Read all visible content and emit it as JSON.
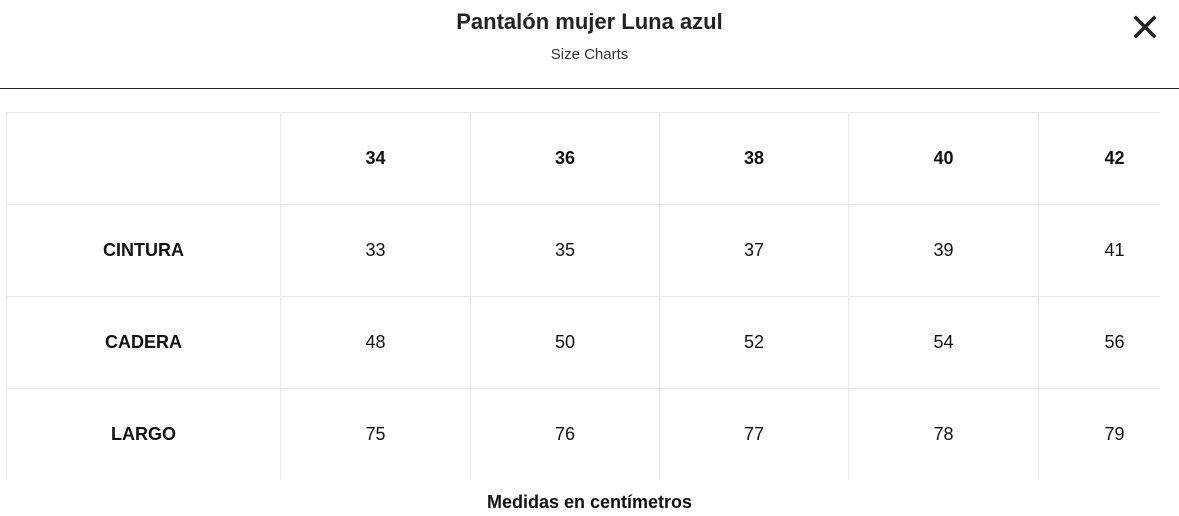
{
  "header": {
    "title": "Pantalón mujer Luna azul",
    "subtitle": "Size Charts"
  },
  "table": {
    "columns": [
      34,
      36,
      38,
      40,
      42
    ],
    "rows": [
      {
        "label": "CINTURA",
        "values": [
          33,
          35,
          37,
          39,
          41
        ]
      },
      {
        "label": "CADERA",
        "values": [
          48,
          50,
          52,
          54,
          56
        ]
      },
      {
        "label": "LARGO",
        "values": [
          75,
          76,
          77,
          78,
          79
        ]
      }
    ]
  },
  "footer": {
    "note": "Medidas en centímetros"
  }
}
